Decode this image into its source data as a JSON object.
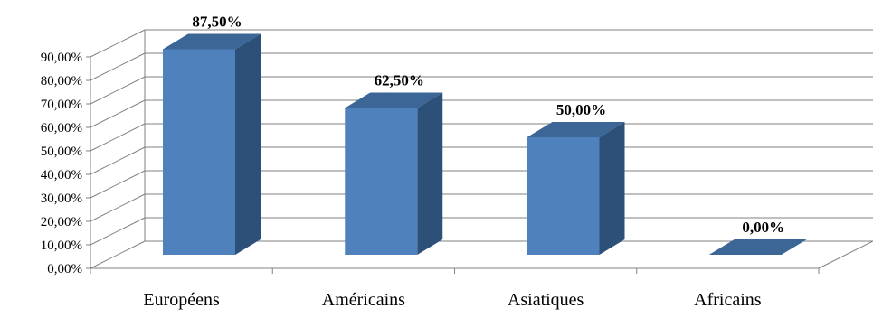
{
  "chart_data": {
    "type": "bar",
    "style": "3d-column",
    "categories": [
      "Européens",
      "Américains",
      "Asiatiques",
      "Africains"
    ],
    "values": [
      87.5,
      62.5,
      50.0,
      0.0
    ],
    "data_labels": [
      "87,50%",
      "62,50%",
      "50,00%",
      "0,00%"
    ],
    "y_ticks": [
      "0,00%",
      "10,00%",
      "20,00%",
      "30,00%",
      "40,00%",
      "50,00%",
      "60,00%",
      "70,00%",
      "80,00%",
      "90,00%"
    ],
    "ylim": [
      0,
      90
    ],
    "grid": true,
    "legend": "none",
    "colors": {
      "front": "#4f81bd",
      "side": "#2d5079",
      "top": "#3b6696",
      "grid": "#808080"
    }
  }
}
